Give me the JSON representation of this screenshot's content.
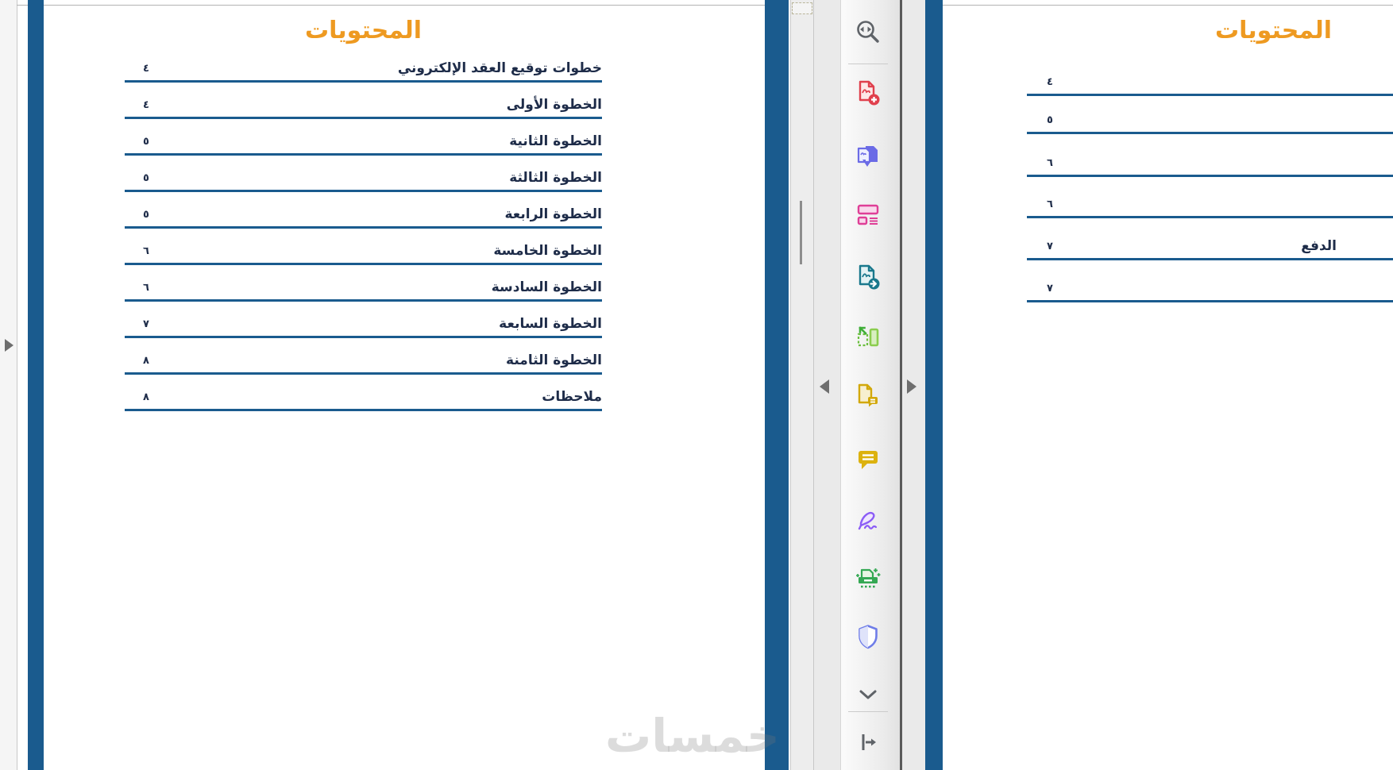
{
  "colors": {
    "accent_blue": "#1a5b8e",
    "heading_orange": "#ee9a21",
    "toc_text_ink": "#1e2c49"
  },
  "watermark_text": "خمسات",
  "left_page": {
    "title": "المحتويات",
    "entries": [
      {
        "label": "خطوات توقيع العقد الإلكتروني",
        "page": "٤"
      },
      {
        "label": "الخطوة الأولى",
        "page": "٤"
      },
      {
        "label": "الخطوة الثانية",
        "page": "٥"
      },
      {
        "label": "الخطوة الثالثة",
        "page": "٥"
      },
      {
        "label": "الخطوة الرابعة",
        "page": "٥"
      },
      {
        "label": "الخطوة الخامسة",
        "page": "٦"
      },
      {
        "label": "الخطوة السادسة",
        "page": "٦"
      },
      {
        "label": "الخطوة السابعة",
        "page": "٧"
      },
      {
        "label": "الخطوة الثامنة",
        "page": "٨"
      },
      {
        "label": "ملاحظات",
        "page": "٨"
      }
    ]
  },
  "right_page": {
    "title": "المحتويات",
    "entries": [
      {
        "label": "",
        "page": "٤"
      },
      {
        "label": "",
        "page": "٥"
      },
      {
        "label": "",
        "page": "٦"
      },
      {
        "label": "",
        "page": "٦"
      },
      {
        "label": "الدفع",
        "page": "٧"
      },
      {
        "label": "",
        "page": "٧"
      }
    ]
  },
  "toolbar": {
    "tools": [
      "marquee-zoom",
      "create-pdf",
      "convert-pdf",
      "organize-pages",
      "export-pdf",
      "crop-pages",
      "combine-annotate",
      "comment",
      "fill-and-sign",
      "scan-ocr",
      "protect",
      "more-tools",
      "collapse-panel"
    ]
  }
}
